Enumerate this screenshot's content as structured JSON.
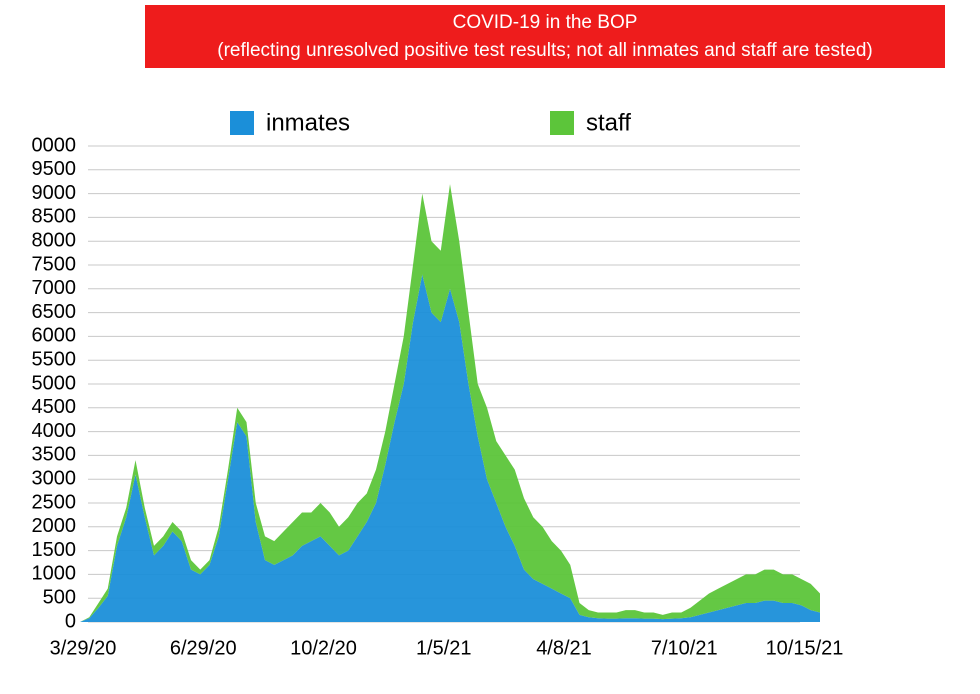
{
  "chart_data": {
    "type": "stacked_area",
    "title": "COVID-19 in the BOP",
    "subtitle": "(reflecting unresolved positive test results; not all inmates and staff are tested)",
    "categories": [
      "3/29/20",
      null,
      null,
      null,
      null,
      null,
      null,
      null,
      null,
      null,
      null,
      null,
      null,
      "6/29/20",
      null,
      null,
      null,
      null,
      null,
      null,
      null,
      null,
      null,
      null,
      null,
      null,
      "10/2/20",
      null,
      null,
      null,
      null,
      null,
      null,
      null,
      null,
      null,
      null,
      null,
      null,
      "1/5/21",
      null,
      null,
      null,
      null,
      null,
      null,
      null,
      null,
      null,
      null,
      null,
      null,
      "4/8/21",
      null,
      null,
      null,
      null,
      null,
      null,
      null,
      null,
      null,
      null,
      null,
      null,
      "7/10/21",
      null,
      null,
      null,
      null,
      null,
      null,
      null,
      null,
      null,
      null,
      null,
      null,
      "10/15/21",
      null,
      null
    ],
    "series": [
      {
        "name": "inmates",
        "color": "#1b8fd9",
        "values": [
          0,
          80,
          300,
          550,
          1600,
          2200,
          3100,
          2200,
          1400,
          1600,
          1900,
          1700,
          1100,
          1000,
          1200,
          1800,
          3000,
          4200,
          3900,
          2100,
          1300,
          1200,
          1300,
          1400,
          1600,
          1700,
          1800,
          1600,
          1400,
          1500,
          1800,
          2100,
          2500,
          3300,
          4200,
          5000,
          6300,
          7300,
          6500,
          6300,
          7000,
          6300,
          5000,
          3900,
          3000,
          2500,
          2000,
          1600,
          1100,
          900,
          800,
          700,
          600,
          500,
          150,
          100,
          80,
          70,
          70,
          80,
          80,
          70,
          70,
          60,
          70,
          80,
          100,
          150,
          200,
          250,
          300,
          350,
          400,
          400,
          450,
          450,
          400,
          400,
          350,
          250,
          200
        ]
      },
      {
        "name": "staff",
        "color": "#5cc53a",
        "values": [
          0,
          20,
          100,
          150,
          200,
          200,
          300,
          200,
          200,
          200,
          200,
          200,
          200,
          100,
          100,
          200,
          200,
          300,
          300,
          400,
          500,
          500,
          600,
          700,
          700,
          600,
          700,
          700,
          600,
          700,
          700,
          600,
          700,
          700,
          800,
          1000,
          1200,
          1700,
          1500,
          1500,
          2200,
          1700,
          1500,
          1100,
          1500,
          1300,
          1500,
          1600,
          1500,
          1300,
          1200,
          1000,
          900,
          700,
          250,
          150,
          120,
          130,
          130,
          170,
          170,
          130,
          130,
          90,
          130,
          120,
          200,
          300,
          400,
          450,
          500,
          550,
          600,
          600,
          650,
          650,
          600,
          600,
          550,
          550,
          400
        ]
      }
    ],
    "ylim": [
      0,
      10000
    ],
    "yticks": [
      0,
      500,
      1000,
      1500,
      2000,
      2500,
      3000,
      3500,
      4000,
      4500,
      5000,
      5500,
      6000,
      6500,
      7000,
      7500,
      8000,
      8500,
      9000,
      9500,
      {
        "value": 10000,
        "label": "0000"
      }
    ],
    "grid": true
  }
}
